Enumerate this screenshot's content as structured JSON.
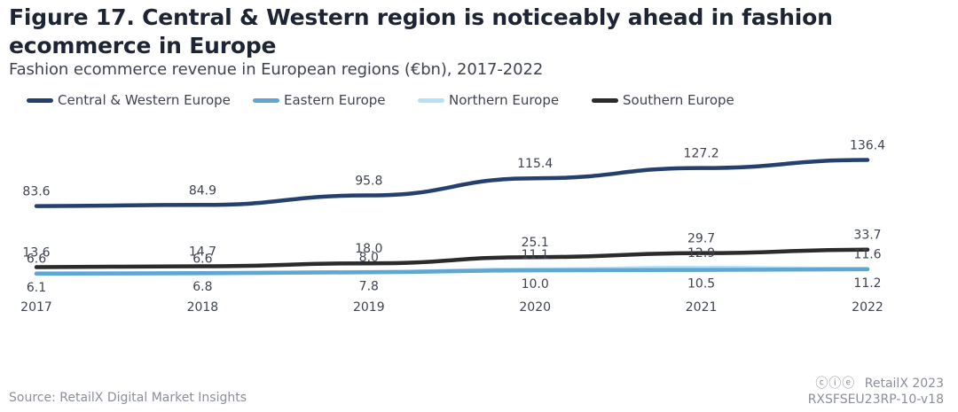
{
  "title": "Figure 17. Central & Western region is noticeably ahead in fashion ecommerce in Europe",
  "subtitle": "Fashion ecommerce revenue in European regions (€bn), 2017-2022",
  "footer": {
    "source": "Source: RetailX Digital Market Insights",
    "brand": "RetailX 2023",
    "code": "RXSFSEU23RP-10-v18",
    "license_icons": "cc-by-nd"
  },
  "chart_data": {
    "type": "line",
    "title": "Figure 17. Central & Western region is noticeably ahead in fashion ecommerce in Europe",
    "subtitle": "Fashion ecommerce revenue in European regions (€bn), 2017-2022",
    "xlabel": "",
    "ylabel": "",
    "categories": [
      "2017",
      "2018",
      "2019",
      "2020",
      "2021",
      "2022"
    ],
    "ylim": [
      0,
      140
    ],
    "grid": false,
    "legend": "top-left",
    "series": [
      {
        "name": "Central & Western Europe",
        "color": "#25406f",
        "values": [
          83.6,
          84.9,
          95.8,
          115.4,
          127.2,
          136.4
        ],
        "labels": [
          "83.6",
          "84.9",
          "95.8",
          "115.4",
          "127.2",
          "136.4"
        ],
        "label_pos": "above"
      },
      {
        "name": "Eastern Europe",
        "color": "#5fa6d3",
        "values": [
          6.1,
          6.8,
          7.8,
          10.0,
          10.5,
          11.2
        ],
        "labels": [
          "6.1",
          "6.8",
          "7.8",
          "10.0",
          "10.5",
          "11.2"
        ],
        "label_pos": "below"
      },
      {
        "name": "Northern Europe",
        "color": "#b3e1f5",
        "values": [
          6.6,
          6.6,
          8.0,
          11.1,
          12.9,
          11.6
        ],
        "labels": [
          "6.6",
          "6.6",
          "8.0",
          "11.1",
          "12.9",
          "11.6"
        ],
        "label_pos": "above"
      },
      {
        "name": "Southern Europe",
        "color": "#2b2b2b",
        "values": [
          13.6,
          14.7,
          18.0,
          25.1,
          29.7,
          33.7
        ],
        "labels": [
          "13.6",
          "14.7",
          "18.0",
          "25.1",
          "29.7",
          "33.7"
        ],
        "label_pos": "above"
      }
    ]
  }
}
